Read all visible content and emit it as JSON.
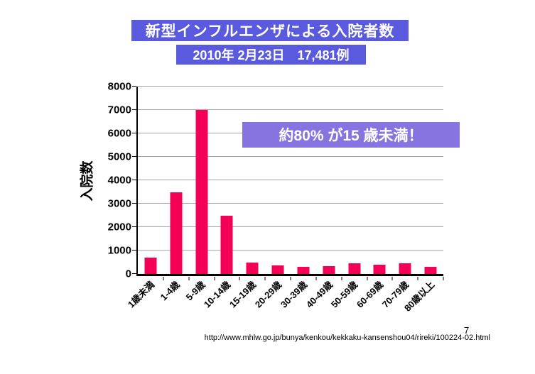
{
  "header": {
    "title": "新型インフルエンザによる入院者数",
    "subtitle": "2010年 2月23日　17,481例"
  },
  "annotation": {
    "text": "約80% が15 歳未満！"
  },
  "footer": {
    "source_url": "http://www.mhlw.go.jp/bunya/kenkou/kekkaku-kansenshou04/rireki/100224-02.html",
    "page_number": "7"
  },
  "colors": {
    "header_bg": "#5A5ADF",
    "annotation_bg": "#8874E0",
    "bar": "#F50057",
    "gridline": "#A6A6A6"
  },
  "chart_data": {
    "type": "bar",
    "title": "新型インフルエンザによる入院者数",
    "subtitle": "2010年 2月23日　17,481例",
    "xlabel": "",
    "ylabel": "入院数",
    "categories": [
      "1歳未満",
      "1-4歳",
      "5-9歳",
      "10-14歳",
      "15-19歳",
      "20-29歳",
      "30-39歳",
      "40-49歳",
      "50-59歳",
      "60-69歳",
      "70-79歳",
      "80歳以上"
    ],
    "values": [
      700,
      3500,
      7000,
      2500,
      480,
      360,
      310,
      330,
      440,
      400,
      460,
      290
    ],
    "ylim": [
      0,
      8000
    ],
    "yticks": [
      0,
      1000,
      2000,
      3000,
      4000,
      5000,
      6000,
      7000,
      8000
    ],
    "grid": "horizontal",
    "legend": "none",
    "annotation": "約80% が15 歳未満！"
  }
}
